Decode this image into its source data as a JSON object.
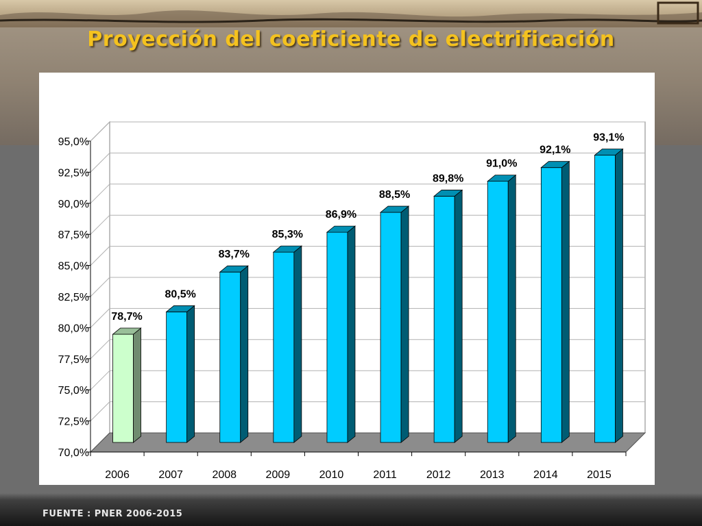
{
  "slide": {
    "title": "Proyección del coeficiente de electrificación",
    "source": "FUENTE : PNER 2006-2015"
  },
  "chart_data": {
    "type": "bar",
    "title": "",
    "xlabel": "",
    "ylabel": "",
    "categories": [
      "2006",
      "2007",
      "2008",
      "2009",
      "2010",
      "2011",
      "2012",
      "2013",
      "2014",
      "2015"
    ],
    "values": [
      78.7,
      80.5,
      83.7,
      85.3,
      86.9,
      88.5,
      89.8,
      91.0,
      92.1,
      93.1
    ],
    "data_labels": [
      "78,7%",
      "80,5%",
      "83,7%",
      "85,3%",
      "86,9%",
      "88,5%",
      "89,8%",
      "91,0%",
      "92,1%",
      "93,1%"
    ],
    "ylim": [
      70,
      95
    ],
    "y_ticks": [
      70,
      72.5,
      75,
      77.5,
      80,
      82.5,
      85,
      87.5,
      90,
      92.5,
      95
    ],
    "y_tick_labels": [
      "70,0%",
      "72,5%",
      "75,0%",
      "77,5%",
      "80,0%",
      "82,5%",
      "85,0%",
      "87,5%",
      "90,0%",
      "92,5%",
      "95,0%"
    ],
    "grid": true,
    "three_d": true,
    "colors": {
      "first_bar": "#ccffcc",
      "bars": "#00ccff",
      "floor": "#8c8c8c"
    }
  }
}
